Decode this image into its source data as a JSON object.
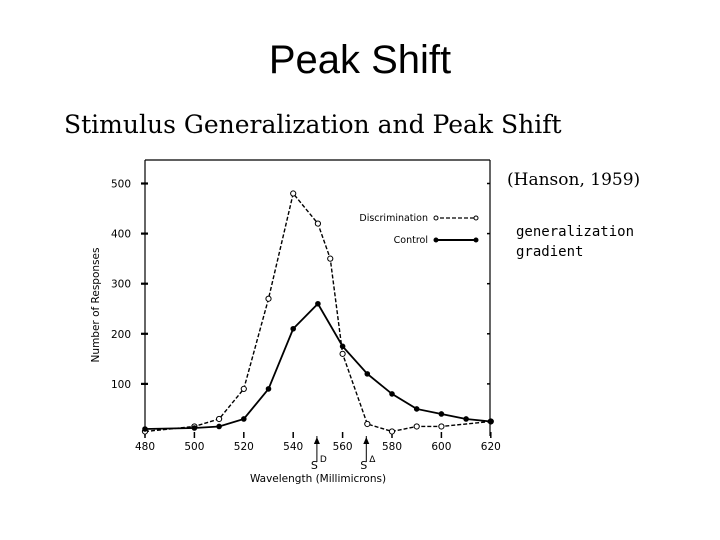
{
  "slide": {
    "title": "Peak Shift",
    "subtitle": "Stimulus Generalization and Peak Shift",
    "citation": "(Hanson, 1959)",
    "annotation_line1": "generalization",
    "annotation_line2": "gradient"
  },
  "chart_data": {
    "type": "line",
    "xlabel": "Wavelength (Millimicrons)",
    "ylabel": "Number of Responses",
    "xlim": [
      480,
      620
    ],
    "ylim": [
      0,
      550
    ],
    "x_ticks": [
      480,
      500,
      520,
      540,
      560,
      580,
      600,
      620
    ],
    "y_ticks": [
      100,
      200,
      300,
      400,
      500
    ],
    "legend_placement": "top-right",
    "series": [
      {
        "name": "Discrimination",
        "style": "dashed",
        "marker": "open-circle",
        "x": [
          480,
          500,
          510,
          520,
          530,
          540,
          550,
          555,
          560,
          570,
          580,
          590,
          600,
          620
        ],
        "y": [
          5,
          15,
          30,
          90,
          270,
          480,
          420,
          350,
          160,
          20,
          5,
          15,
          15,
          25
        ]
      },
      {
        "name": "Control",
        "style": "solid",
        "marker": "filled-circle",
        "x": [
          480,
          500,
          510,
          520,
          530,
          540,
          550,
          560,
          570,
          580,
          590,
          600,
          610,
          620
        ],
        "y": [
          10,
          12,
          15,
          30,
          90,
          210,
          260,
          175,
          120,
          80,
          50,
          40,
          30,
          25
        ]
      }
    ],
    "annotations": [
      {
        "label": "S",
        "superscript": "D",
        "x": 550
      },
      {
        "label": "S",
        "superscript": "Δ",
        "x": 570
      }
    ]
  }
}
